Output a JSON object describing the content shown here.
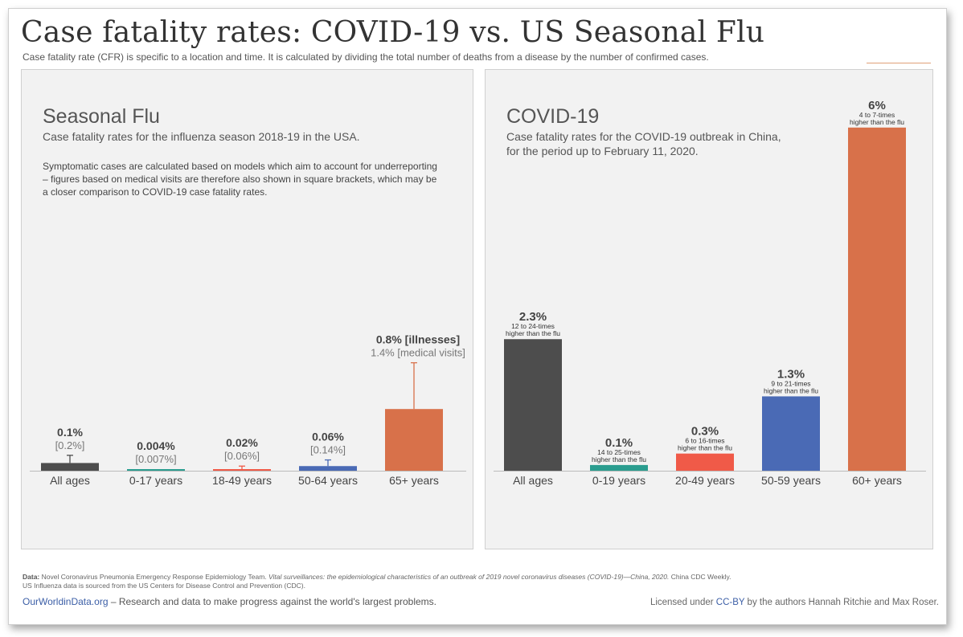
{
  "header": {
    "title": "Case fatality rates: COVID-19 vs. US Seasonal Flu",
    "subtitle": "Case fatality rate (CFR) is specific to a location and time. It is calculated by dividing the total number of deaths from a disease by the number of confirmed cases."
  },
  "left_panel": {
    "title": "Seasonal Flu",
    "subtitle": "Case fatality rates for the influenza season 2018-19 in the USA.",
    "note": "Symptomatic cases are calculated based on models which aim to account for underreporting – figures based on medical visits are therefore also shown in square brackets, which may be a closer comparison to COVID-19 case fatality rates."
  },
  "right_panel": {
    "title": "COVID-19",
    "subtitle_line1": "Case fatality rates for the COVID-19 outbreak in China,",
    "subtitle_line2": "for the period  up to February 11, 2020."
  },
  "chart_data": [
    {
      "type": "bar",
      "categories": [
        "All ages",
        "0-17 years",
        "18-49 years",
        "50-64 years",
        "65+ years"
      ],
      "values": [
        0.1,
        0.004,
        0.02,
        0.06,
        0.8
      ],
      "medical_visits": [
        0.2,
        0.007,
        0.06,
        0.14,
        1.4
      ],
      "labels": [
        "0.1%",
        "0.004%",
        "0.02%",
        "0.06%",
        "0.8% [illnesses]"
      ],
      "sublabels": [
        "[0.2%]",
        "[0.007%]",
        "[0.06%]",
        "[0.14%]",
        "1.4% [medical visits]"
      ],
      "colors": [
        "#4d4d4d",
        "#2a9d8f",
        "#f05a48",
        "#4a6ab5",
        "#d8714a"
      ],
      "unit": "%",
      "ylim": [
        0,
        1.7
      ]
    },
    {
      "type": "bar",
      "categories": [
        "All ages",
        "0-19 years",
        "20-49 years",
        "50-59 years",
        "60+ years"
      ],
      "values": [
        2.3,
        0.1,
        0.3,
        1.3,
        6
      ],
      "labels": [
        "2.3%",
        "0.1%",
        "0.3%",
        "1.3%",
        "6%"
      ],
      "comparisons": [
        [
          "12 to 24-times",
          "higher than the flu"
        ],
        [
          "14 to 25-times",
          "higher than the flu"
        ],
        [
          "6 to 16-times",
          "higher than the flu"
        ],
        [
          "9 to 21-times",
          "higher than the flu"
        ],
        [
          "4 to 7-times",
          "higher than the flu"
        ]
      ],
      "colors": [
        "#4d4d4d",
        "#2a9d8f",
        "#f05a48",
        "#4a6ab5",
        "#d8714a"
      ],
      "unit": "%",
      "ylim": [
        0,
        6
      ]
    }
  ],
  "footer": {
    "data_label": "Data:",
    "data_text": "Novel Coronavirus Pneumonia Emergency Response Epidemiology Team.",
    "data_italic": "Vital surveillances: the epidemiological characteristics of an outbreak of 2019 novel coronavirus diseases (COVID-19)—China, 2020.",
    "data_text2": "China CDC Weekly.",
    "data_line2": "US Influenza data is sourced from the US Centers for Disease Control and Prevention (CDC).",
    "owid_link": "OurWorldinData.org",
    "owid_text": " – Research and data to make progress against the world's largest problems.",
    "license_pre": "Licensed under ",
    "license_link": "CC-BY",
    "license_post": " by the authors Hannah Ritchie and Max Roser."
  }
}
